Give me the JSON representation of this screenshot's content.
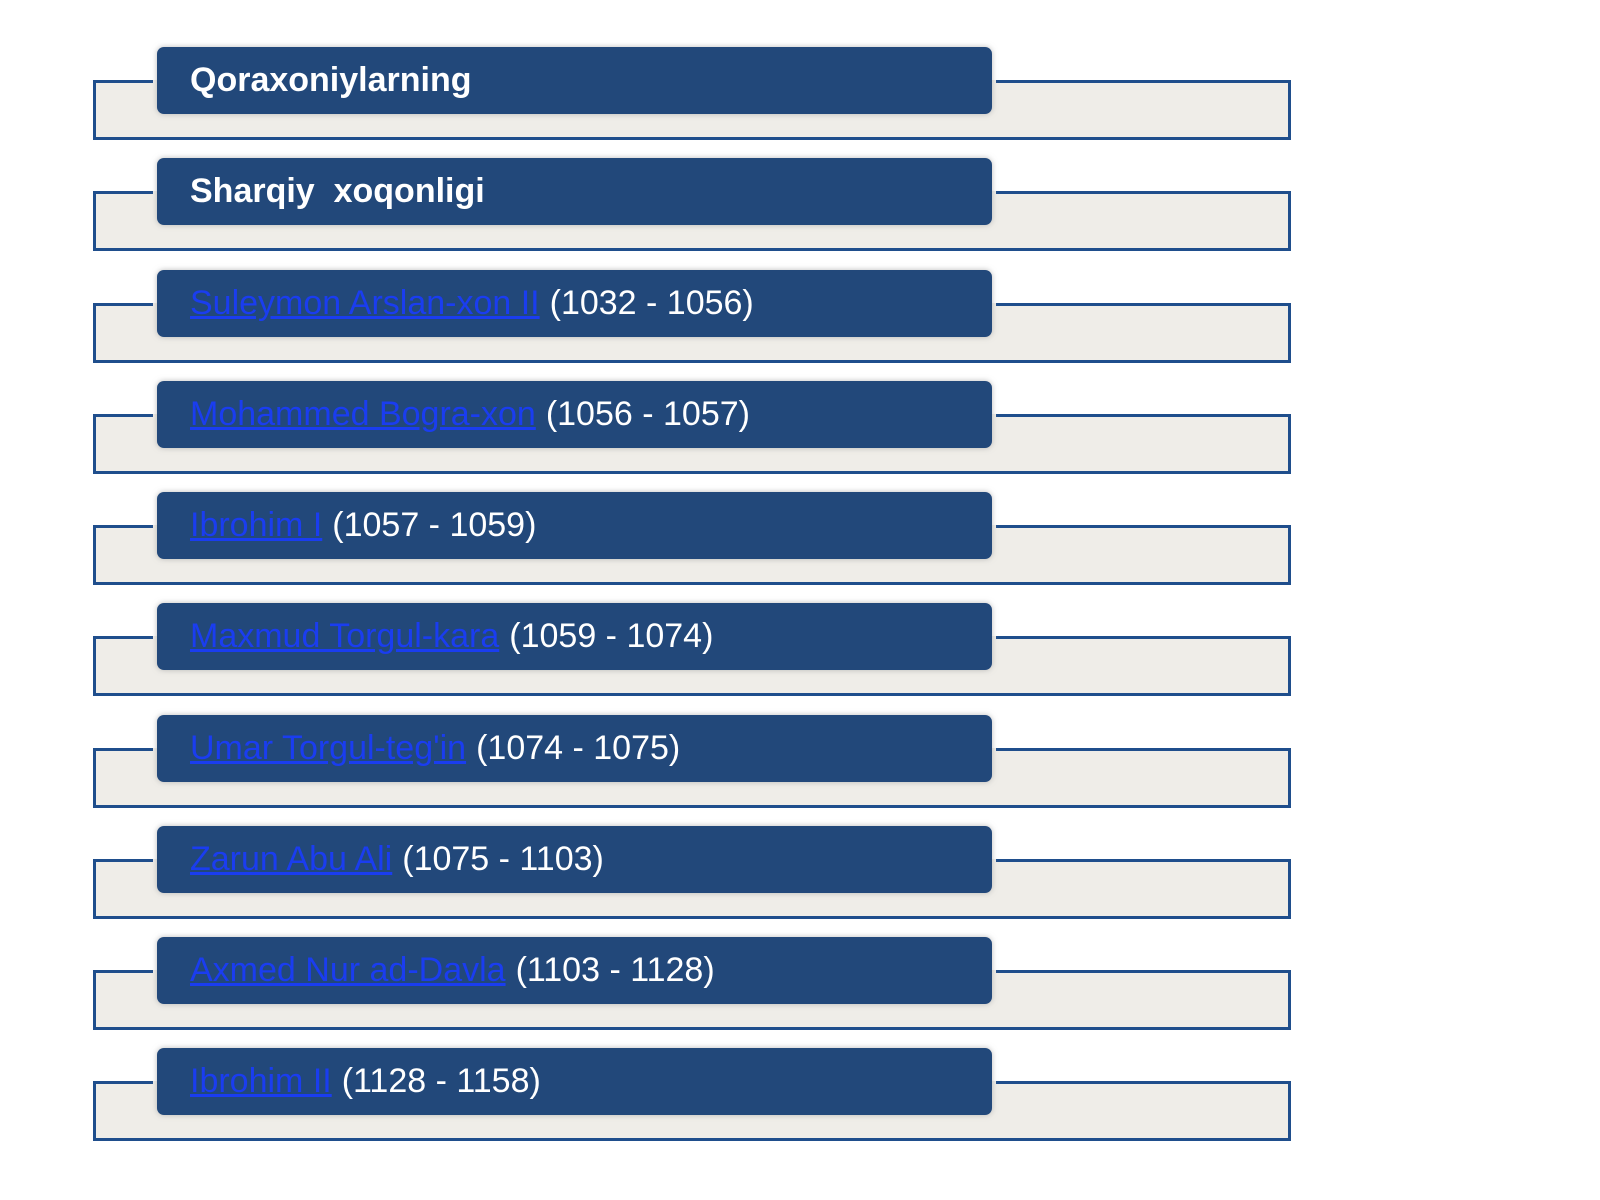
{
  "headers": [
    "Qoraxoniylarning",
    "Sharqiy  xoqonligi"
  ],
  "rulers": [
    {
      "name": "Suleymon Arslan-xon II",
      "years": "(1032 - 1056)"
    },
    {
      "name": "Mohammed Bogra-xon",
      "years": "(1056 - 1057)"
    },
    {
      "name": "Ibrohim I",
      "years": "(1057 - 1059)"
    },
    {
      "name": "Maxmud Torgul-kara",
      "years": "(1059 - 1074)"
    },
    {
      "name": "Umar Torgul-teg'in",
      "years": "(1074 - 1075)"
    },
    {
      "name": "Zarun Abu Ali",
      "years": "(1075 - 1103)"
    },
    {
      "name": "Axmed Nur ad-Davla",
      "years": "(1103 - 1128)"
    },
    {
      "name": "Ibrohim II",
      "years": "(1128 - 1158)"
    }
  ],
  "colors": {
    "bar": "#22487a",
    "frame_border": "#1f4e8c",
    "frame_fill": "#efede8",
    "link": "#1a3df0"
  }
}
